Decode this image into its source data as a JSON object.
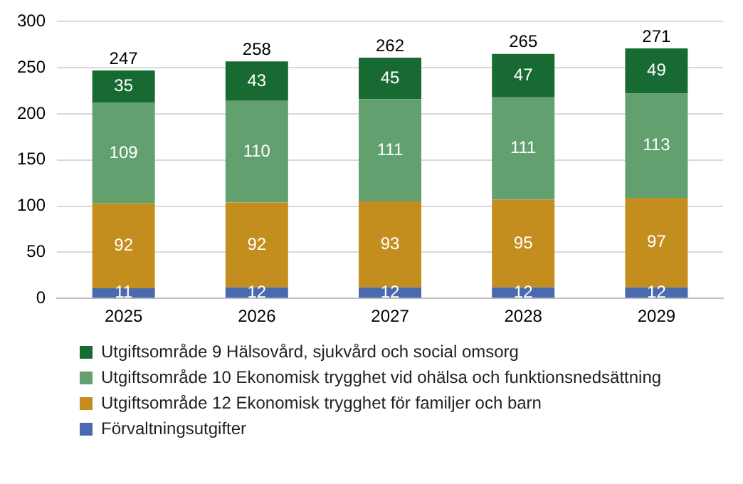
{
  "chart_data": {
    "type": "bar",
    "stacked": true,
    "categories": [
      "2025",
      "2026",
      "2027",
      "2028",
      "2029"
    ],
    "series": [
      {
        "name": "Förvaltningsutgifter",
        "color": "#4a6aae",
        "values": [
          11,
          12,
          12,
          12,
          12
        ]
      },
      {
        "name": "Utgiftsområde 12 Ekonomisk trygghet för familjer och barn",
        "color": "#c48e1f",
        "values": [
          92,
          92,
          93,
          95,
          97
        ]
      },
      {
        "name": "Utgiftsområde 10 Ekonomisk trygghet vid ohälsa och funktionsnedsättning",
        "color": "#62a070",
        "values": [
          109,
          110,
          111,
          111,
          113
        ]
      },
      {
        "name": "Utgiftsområde 9 Hälsovård, sjukvård och social omsorg",
        "color": "#176b32",
        "values": [
          35,
          43,
          45,
          47,
          49
        ]
      }
    ],
    "totals": [
      "247",
      "258",
      "262",
      "265",
      "271"
    ],
    "data_labels": true,
    "ylim": [
      0,
      300
    ],
    "yticks": [
      0,
      50,
      100,
      150,
      200,
      250,
      300
    ],
    "grid": "y",
    "legend": "bottom"
  }
}
